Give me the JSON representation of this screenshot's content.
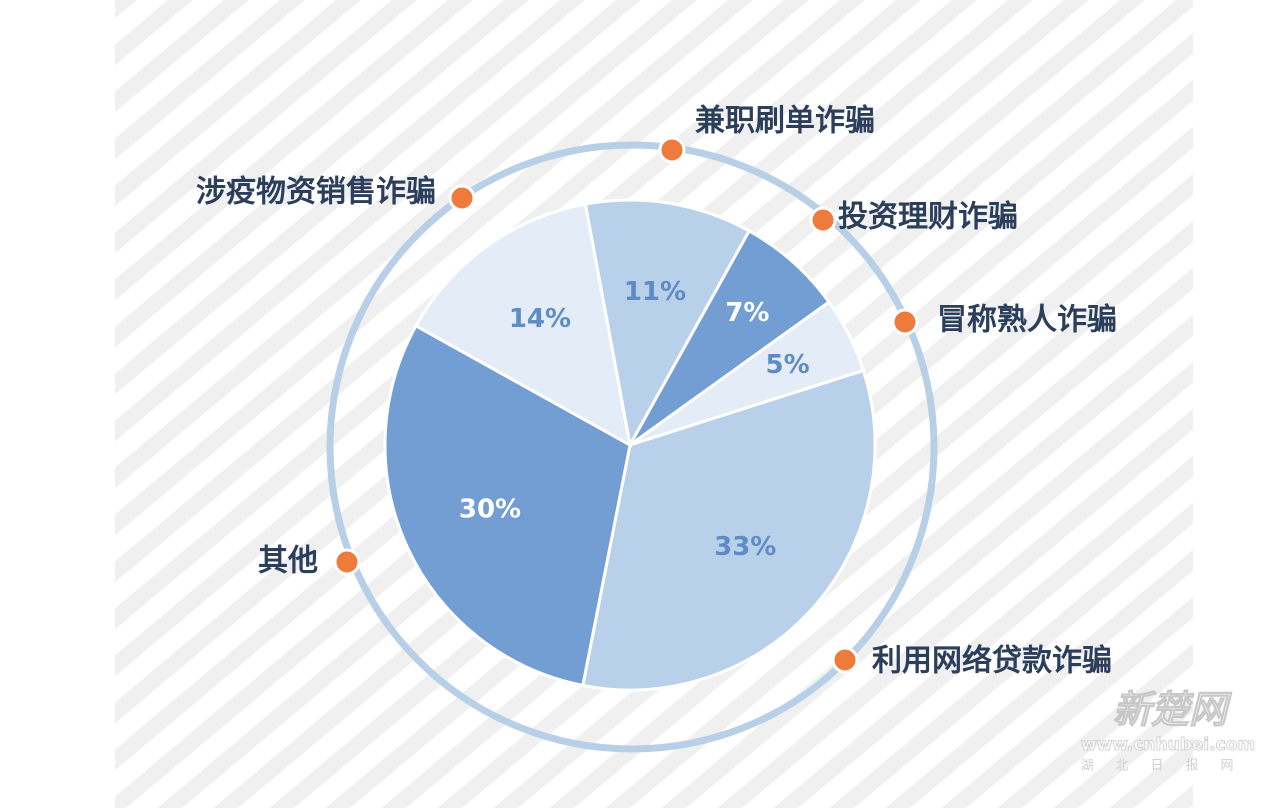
{
  "chart_data": {
    "type": "pie",
    "categories": [
      "兼职刷单诈骗",
      "投资理财诈骗",
      "冒称熟人诈骗",
      "利用网络贷款诈骗",
      "其他",
      "涉疫物资销售诈骗"
    ],
    "values": [
      11,
      7,
      5,
      33,
      30,
      14
    ],
    "value_labels": [
      "11%",
      "7%",
      "5%",
      "33%",
      "30%",
      "14%"
    ],
    "colors": [
      "#b8d0ea",
      "#729ed3",
      "#e4edf7",
      "#b8d0ea",
      "#729ed3",
      "#e4edf7"
    ],
    "watermark": [
      "新楚网",
      "www.cnhubei.com",
      "湖北日报网"
    ]
  }
}
